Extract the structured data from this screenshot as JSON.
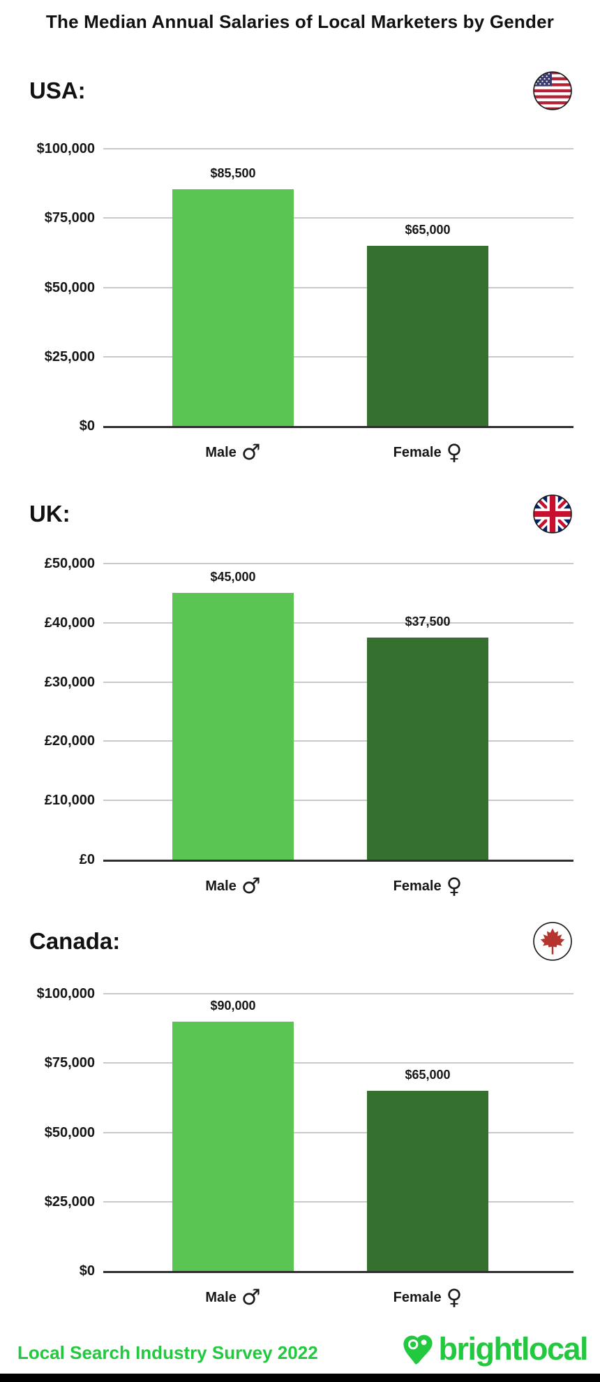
{
  "page": {
    "title": "The Median Annual Salaries of Local Marketers by Gender",
    "footer": {
      "survey_label": "Local Search Industry Survey 2022",
      "brand": "brightlocal"
    },
    "colors": {
      "male_bar": "#5BC553",
      "female_bar": "#35702F",
      "brand_green": "#22C93E",
      "gridline": "#C9C9C9",
      "axis": "#2E2E2E",
      "text": "#121212",
      "us_flag_red": "#B22234",
      "us_flag_blue": "#3C3B6E",
      "uk_flag_navy": "#012169",
      "uk_flag_red": "#C8102E",
      "canada_leaf_red": "#B5342E"
    }
  },
  "chart_data": [
    {
      "type": "bar",
      "title": "USA:",
      "flag_icon": "usa-flag-icon",
      "categories": [
        "Male",
        "Female"
      ],
      "category_symbols": [
        "♂",
        "♀"
      ],
      "values": [
        85500,
        65000
      ],
      "value_labels": [
        "$85,500",
        "$65,000"
      ],
      "bar_colors": [
        "#5BC553",
        "#35702F"
      ],
      "ylim": [
        0,
        100000
      ],
      "yticks": [
        100000,
        75000,
        50000,
        25000,
        0
      ],
      "ytick_labels": [
        "$100,000",
        "$75,000",
        "$50,000",
        "$25,000",
        "$0"
      ],
      "grid": true,
      "legend": false
    },
    {
      "type": "bar",
      "title": "UK:",
      "flag_icon": "uk-flag-icon",
      "categories": [
        "Male",
        "Female"
      ],
      "category_symbols": [
        "♂",
        "♀"
      ],
      "values": [
        45000,
        37500
      ],
      "value_labels": [
        "$45,000",
        "$37,500"
      ],
      "bar_colors": [
        "#5BC553",
        "#35702F"
      ],
      "ylim": [
        0,
        50000
      ],
      "yticks": [
        50000,
        40000,
        30000,
        20000,
        10000,
        0
      ],
      "ytick_labels": [
        "£50,000",
        "£40,000",
        "£30,000",
        "£20,000",
        "£10,000",
        "£0"
      ],
      "grid": true,
      "legend": false
    },
    {
      "type": "bar",
      "title": "Canada:",
      "flag_icon": "canada-flag-icon",
      "categories": [
        "Male",
        "Female"
      ],
      "category_symbols": [
        "♂",
        "♀"
      ],
      "values": [
        90000,
        65000
      ],
      "value_labels": [
        "$90,000",
        "$65,000"
      ],
      "bar_colors": [
        "#5BC553",
        "#35702F"
      ],
      "ylim": [
        0,
        100000
      ],
      "yticks": [
        100000,
        75000,
        50000,
        25000,
        0
      ],
      "ytick_labels": [
        "$100,000",
        "$75,000",
        "$50,000",
        "$25,000",
        "$0"
      ],
      "grid": true,
      "legend": false
    }
  ]
}
